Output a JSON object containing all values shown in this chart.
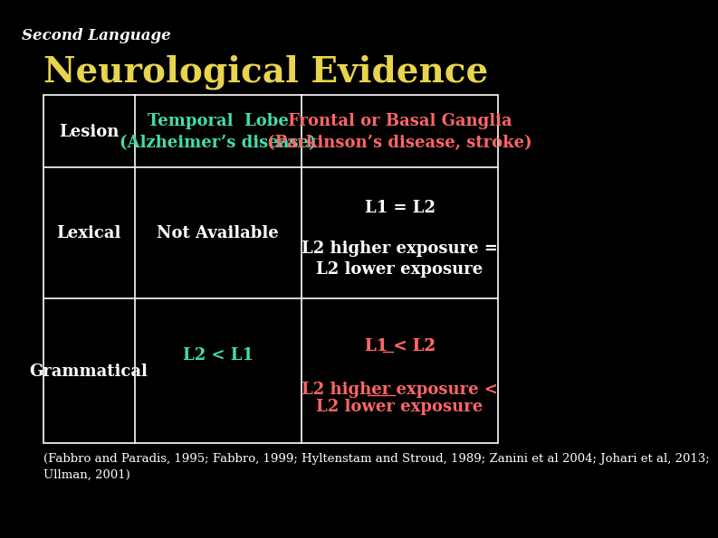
{
  "bg_color": "#000000",
  "title_small": "Second Language",
  "title_small_color": "#ffffff",
  "title_small_fontsize": 12,
  "title_main": "Neurological Evidence",
  "title_main_color": "#e8d44d",
  "title_main_fontsize": 28,
  "table_border_color": "#ffffff",
  "header_row": {
    "col0": {
      "text": "Lesion",
      "color": "#ffffff",
      "fontsize": 13
    },
    "col1": {
      "text": "Temporal  Lobe\n(Alzheimer’s disease)",
      "color": "#44ddaa",
      "fontsize": 13
    },
    "col2": {
      "text": "Frontal or Basal Ganglia\n(Parkinson’s disease, stroke)",
      "color": "#ff6666",
      "fontsize": 13
    }
  },
  "row1": {
    "col0": {
      "text": "Lexical",
      "color": "#ffffff",
      "fontsize": 13
    },
    "col1": {
      "text": "Not Available",
      "color": "#ffffff",
      "fontsize": 13
    },
    "col2_line1": {
      "text": "L1 = L2",
      "color": "#ffffff",
      "fontsize": 13
    },
    "col2_line2": {
      "text": "L2 higher exposure =\nL2 lower exposure",
      "color": "#ffffff",
      "fontsize": 13
    }
  },
  "row2": {
    "col0": {
      "text": "Grammatical",
      "color": "#ffffff",
      "fontsize": 13
    },
    "col1": {
      "text": "L2 < L1",
      "color": "#44ddaa",
      "fontsize": 13
    },
    "col2_line1": {
      "text": "L1 < L2",
      "color": "#ff6666",
      "fontsize": 13,
      "underline_L1": true
    },
    "col2_line2_pre": "L2 ",
    "col2_line2_under": "higher",
    "col2_line2_post": " exposure <\nL2 lower exposure",
    "col2_line2_color": "#ff6666",
    "col2_line2_fontsize": 13
  },
  "citation": "(Fabbro and Paradis, 1995; Fabbro, 1999; Hyltenstam and Stroud, 1989; Zanini et al 2004; Johari et al, 2013;\nUllman, 2001)",
  "citation_color": "#ffffff",
  "citation_fontsize": 9.5
}
